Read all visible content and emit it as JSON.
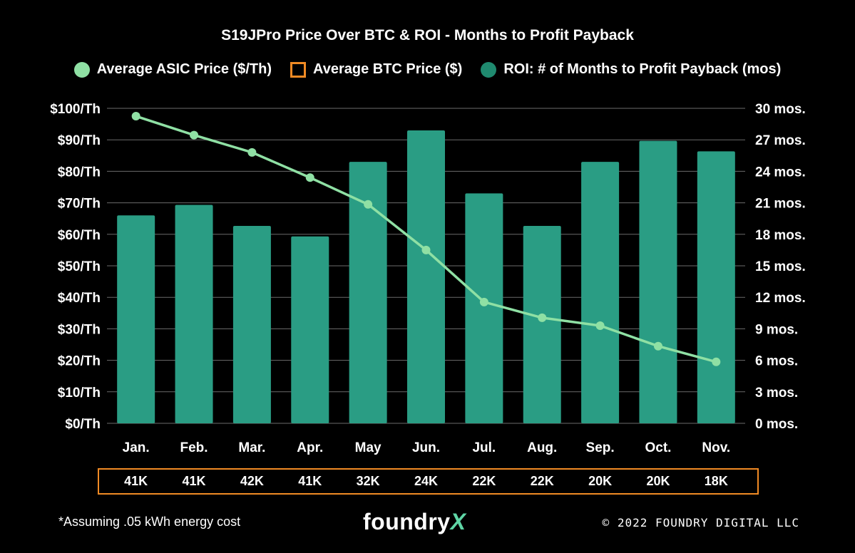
{
  "chart_data": {
    "type": "bar",
    "title": "S19JPro Price Over BTC & ROI - Months to Profit Payback",
    "categories": [
      "Jan.",
      "Feb.",
      "Mar.",
      "Apr.",
      "May",
      "Jun.",
      "Jul.",
      "Aug.",
      "Sep.",
      "Oct.",
      "Nov."
    ],
    "series": [
      {
        "name": "ROI: # of Months to Profit Payback (mos)",
        "axis": "right",
        "type": "bar",
        "color": "#2a9d84",
        "values": [
          19.8,
          20.8,
          18.8,
          17.8,
          24.9,
          27.9,
          21.9,
          18.8,
          24.9,
          26.9,
          25.9
        ]
      },
      {
        "name": "Average ASIC Price ($/Th)",
        "axis": "left",
        "type": "line",
        "color": "#8fe0a4",
        "values": [
          97.5,
          91.5,
          86.0,
          78.0,
          69.5,
          55.0,
          38.5,
          33.5,
          31.0,
          24.5,
          19.5
        ]
      }
    ],
    "btc_series": {
      "name": "Average BTC Price ($)",
      "color": "#f08a24",
      "values": [
        "41K",
        "41K",
        "42K",
        "41K",
        "32K",
        "24K",
        "22K",
        "22K",
        "20K",
        "20K",
        "18K"
      ]
    },
    "left_axis": {
      "ylim": [
        0,
        100
      ],
      "ticks": [
        "$0/Th",
        "$10/Th",
        "$20/Th",
        "$30/Th",
        "$40/Th",
        "$50/Th",
        "$60/Th",
        "$70/Th",
        "$80/Th",
        "$90/Th",
        "$100/Th"
      ]
    },
    "right_axis": {
      "ylim": [
        0,
        30
      ],
      "ticks": [
        "0 mos.",
        "3 mos.",
        "6 mos.",
        "9 mos.",
        "12 mos.",
        "15 mos.",
        "18 mos.",
        "21 mos.",
        "24 mos.",
        "27 mos.",
        "30 mos."
      ]
    },
    "grid": true,
    "legend_position": "top"
  },
  "footer": {
    "footnote": "*Assuming .05 kWh energy cost",
    "logo_text": "foundry",
    "logo_x": "X",
    "copyright": "© 2022 FOUNDRY DIGITAL LLC"
  }
}
